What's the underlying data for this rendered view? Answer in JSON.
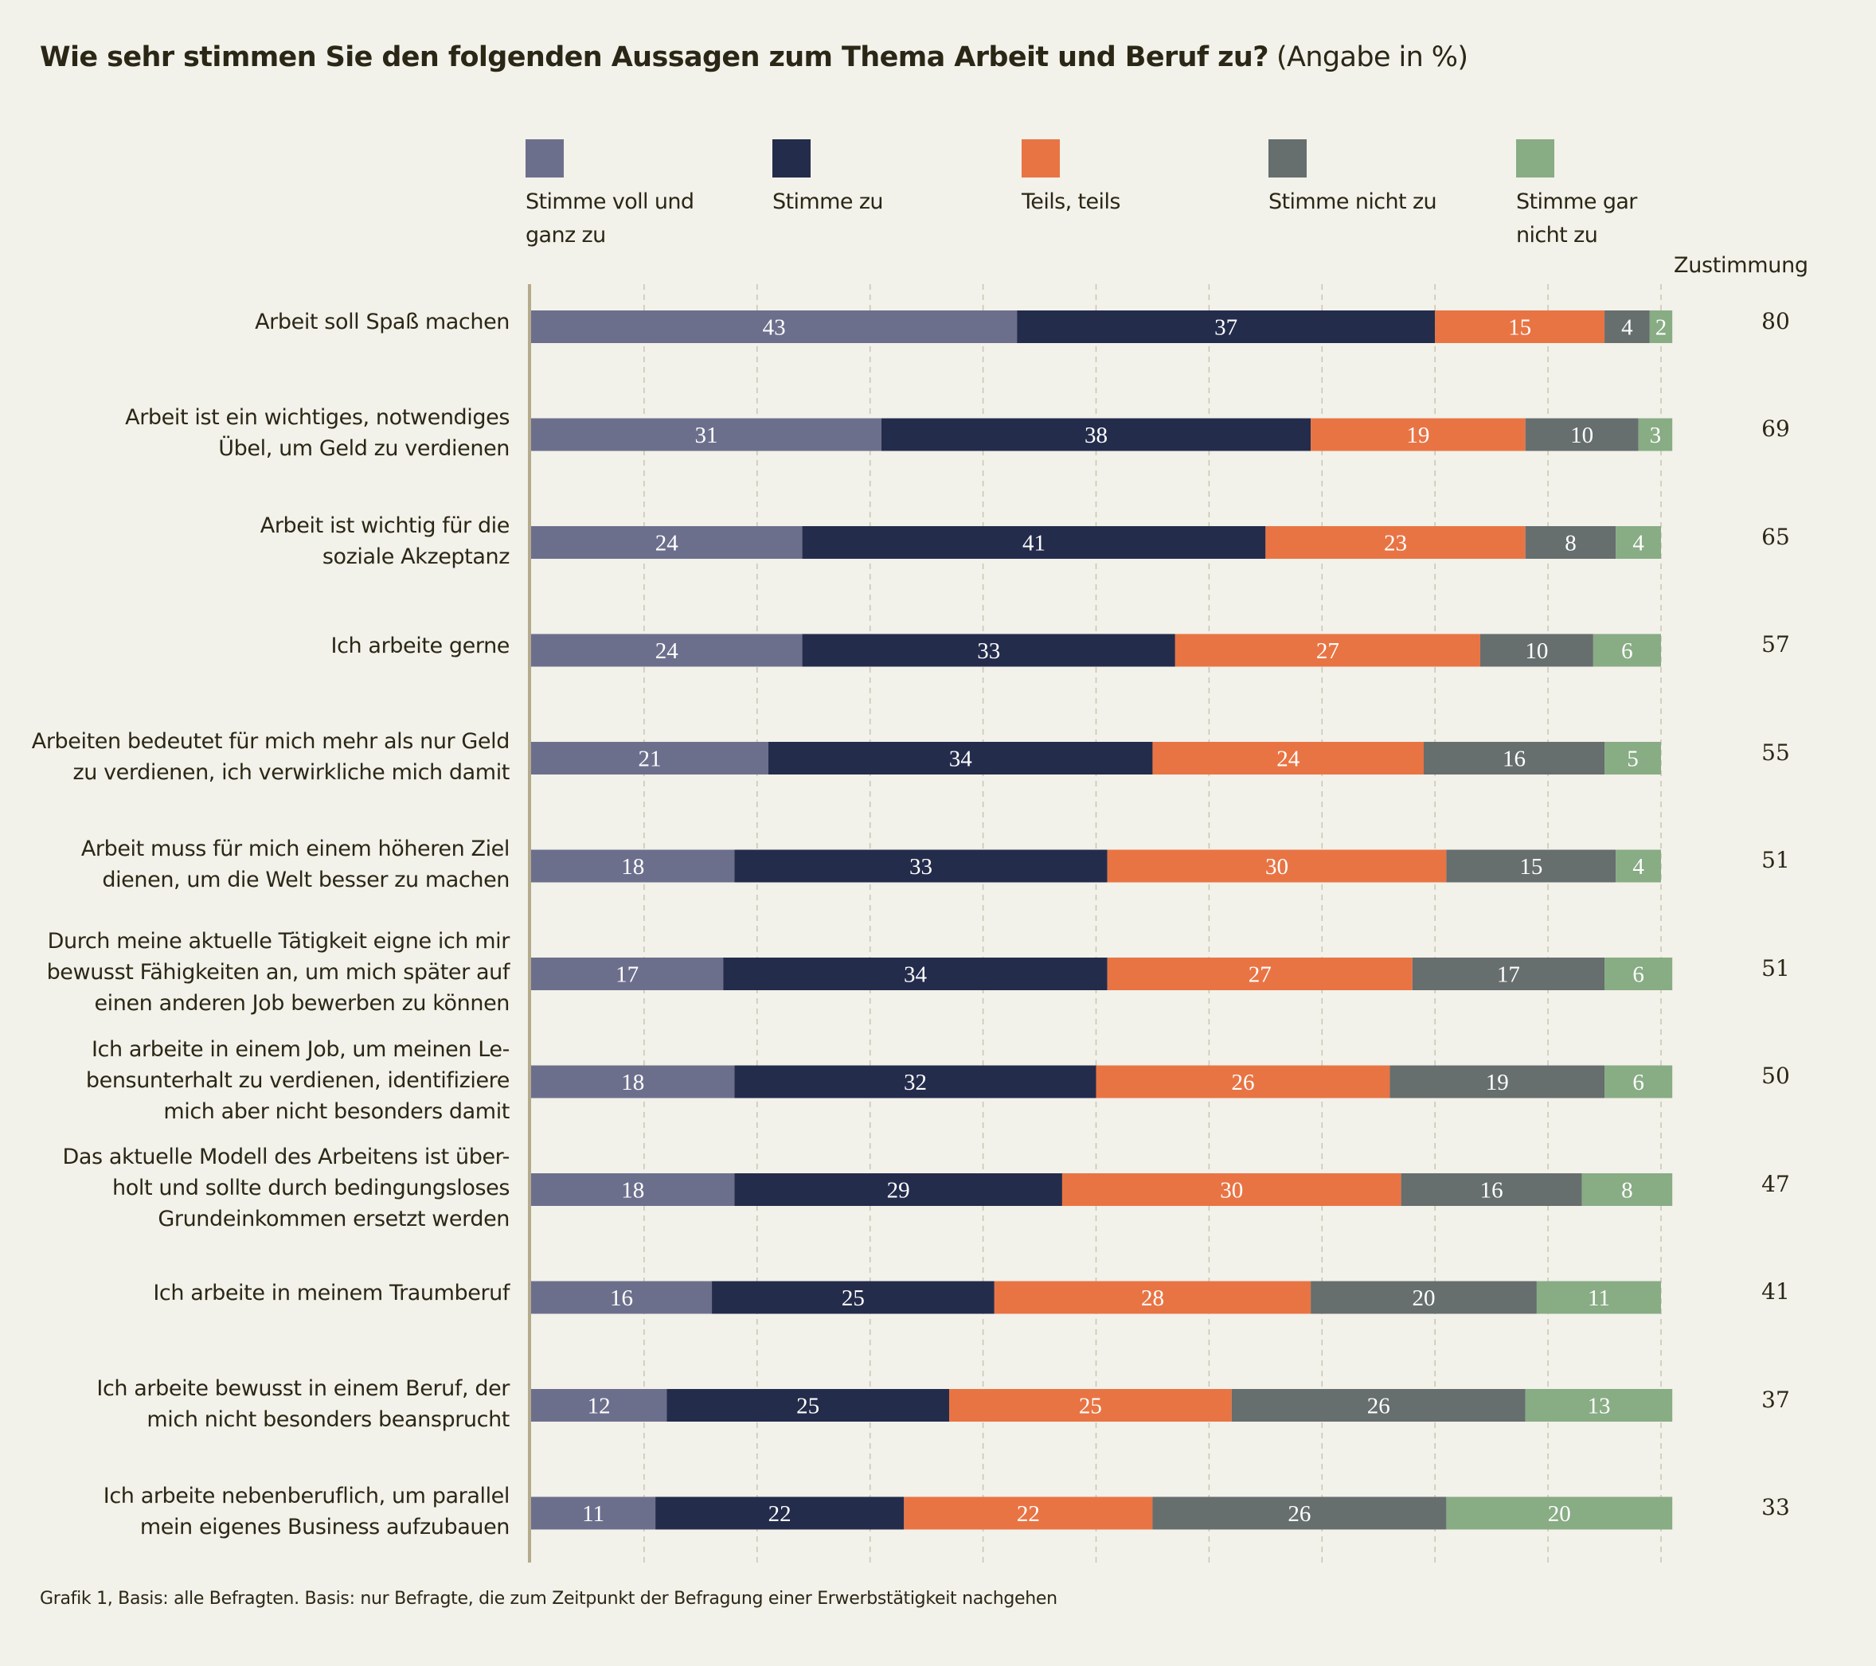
{
  "title": {
    "bold": "Wie sehr stimmen Sie den folgenden Aussagen zum Thema Arbeit und Beruf zu?",
    "unit": "(Angabe in %)"
  },
  "zustimmung_header": "Zustimmung",
  "footnote": "Grafik 1, Basis: alle Befragten. Basis: nur Befragte, die zum Zeitpunkt der Befragung einer Erwerbstätigkeit nachgehen",
  "chart_data": {
    "type": "bar",
    "orientation": "horizontal",
    "stacked": true,
    "title": "Wie sehr stimmen Sie den folgenden Aussagen zum Thema Arbeit und Beruf zu? (Angabe in %)",
    "xlabel": "",
    "ylabel": "",
    "xlim": [
      0,
      100
    ],
    "grid": true,
    "legend_position": "top",
    "categories": [
      "Arbeit soll Spaß machen",
      "Arbeit ist ein wichtiges, notwendiges\nÜbel, um Geld zu verdienen",
      "Arbeit ist wichtig für die\nsoziale Akzeptanz",
      "Ich arbeite gerne",
      "Arbeiten bedeutet für mich mehr als nur Geld\nzu verdienen, ich verwirkliche mich damit",
      "Arbeit muss für mich einem höheren Ziel\ndienen, um die Welt besser zu machen",
      "Durch meine aktuelle Tätigkeit eigne ich mir\nbewusst Fähigkeiten an, um mich später auf\neinen anderen Job bewerben zu können",
      "Ich arbeite in einem Job, um meinen Le-\nbensunterhalt zu verdienen, identifiziere\nmich aber nicht besonders damit",
      "Das aktuelle Modell des Arbeitens ist über-\nholt und sollte durch bedingungsloses\nGrundeinkommen ersetzt werden",
      "Ich arbeite in meinem Traumberuf",
      "Ich arbeite bewusst in einem Beruf, der\nmich nicht besonders beansprucht",
      "Ich arbeite nebenberuflich, um parallel\nmein eigenes Business aufzubauen"
    ],
    "series": [
      {
        "name": "Stimme voll und ganz zu",
        "color": "#6c6f8c",
        "values": [
          43,
          31,
          24,
          24,
          21,
          18,
          17,
          18,
          18,
          16,
          12,
          11
        ]
      },
      {
        "name": "Stimme zu",
        "color": "#242c4c",
        "values": [
          37,
          38,
          41,
          33,
          34,
          33,
          34,
          32,
          29,
          25,
          25,
          22
        ]
      },
      {
        "name": "Teils, teils",
        "color": "#e87444",
        "values": [
          15,
          19,
          23,
          27,
          24,
          30,
          27,
          26,
          30,
          28,
          25,
          22
        ]
      },
      {
        "name": "Stimme nicht zu",
        "color": "#666e6e",
        "values": [
          4,
          10,
          8,
          10,
          16,
          15,
          17,
          19,
          16,
          20,
          26,
          26
        ]
      },
      {
        "name": "Stimme gar nicht zu",
        "color": "#88ac84",
        "values": [
          2,
          3,
          4,
          6,
          5,
          4,
          6,
          6,
          8,
          11,
          13,
          20
        ]
      }
    ],
    "zustimmung": [
      80,
      69,
      65,
      57,
      55,
      51,
      51,
      50,
      47,
      41,
      37,
      33
    ],
    "legend_labels": [
      "Stimme voll und\nganz zu",
      "Stimme zu",
      "Teils, teils",
      "Stimme nicht zu",
      "Stimme gar\nnicht zu"
    ]
  }
}
